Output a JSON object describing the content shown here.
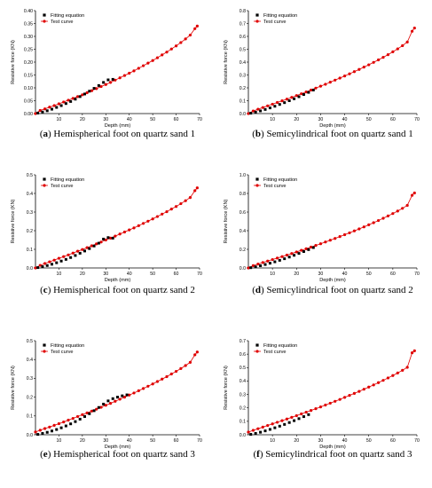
{
  "legend": {
    "fit_label": "Fitting equation",
    "test_label": "Test curve"
  },
  "colors": {
    "fit": "#000000",
    "test": "#e00000"
  },
  "chart_data": [
    {
      "type": "scatter",
      "title": "",
      "caption_prefix": "(",
      "caption_letter": "a",
      "caption_rest": ") Hemispherical foot on quartz sand 1",
      "xlabel": "Depth (mm)",
      "ylabel": "Resistive force (KN)",
      "xlim": [
        0,
        70
      ],
      "ylim": [
        0,
        0.4
      ],
      "xticks": [
        10,
        20,
        30,
        40,
        50,
        60,
        70
      ],
      "yticks": [
        0.0,
        0.05,
        0.1,
        0.15,
        0.2,
        0.25,
        0.3,
        0.35,
        0.4
      ],
      "ytick_labels": [
        "0.00",
        "0.05",
        "0.10",
        "0.15",
        "0.20",
        "0.25",
        "0.30",
        "0.35",
        "0.40"
      ],
      "series": [
        {
          "name": "Fitting equation",
          "x": [
            1,
            3,
            5,
            7,
            9,
            11,
            13,
            15,
            17,
            19,
            21,
            23,
            25,
            27,
            29,
            31,
            33
          ],
          "y": [
            0.002,
            0.006,
            0.011,
            0.017,
            0.024,
            0.031,
            0.039,
            0.047,
            0.056,
            0.066,
            0.076,
            0.087,
            0.098,
            0.109,
            0.121,
            0.131,
            0.133
          ]
        },
        {
          "name": "Test curve",
          "x": [
            0,
            2,
            4,
            6,
            8,
            10,
            12,
            14,
            16,
            18,
            20,
            22,
            24,
            26,
            28,
            30,
            32,
            34,
            36,
            38,
            40,
            42,
            44,
            46,
            48,
            50,
            52,
            54,
            56,
            58,
            60,
            62,
            64,
            66,
            68,
            69
          ],
          "y": [
            0.0,
            0.012,
            0.018,
            0.025,
            0.031,
            0.038,
            0.045,
            0.052,
            0.059,
            0.066,
            0.073,
            0.081,
            0.089,
            0.097,
            0.105,
            0.113,
            0.121,
            0.13,
            0.139,
            0.148,
            0.157,
            0.166,
            0.176,
            0.186,
            0.196,
            0.206,
            0.217,
            0.228,
            0.239,
            0.251,
            0.263,
            0.276,
            0.29,
            0.305,
            0.33,
            0.34
          ]
        }
      ]
    },
    {
      "type": "scatter",
      "title": "",
      "caption_prefix": "(",
      "caption_letter": "b",
      "caption_rest": ") Semicylindrical foot on quartz sand 1",
      "xlabel": "Depth (mm)",
      "ylabel": "Resistive force (KN)",
      "xlim": [
        0,
        70
      ],
      "ylim": [
        0,
        0.8
      ],
      "xticks": [
        10,
        20,
        30,
        40,
        50,
        60,
        70
      ],
      "yticks": [
        0.0,
        0.1,
        0.2,
        0.3,
        0.4,
        0.5,
        0.6,
        0.7,
        0.8
      ],
      "ytick_labels": [
        "0.0",
        "0.1",
        "0.2",
        "0.3",
        "0.4",
        "0.5",
        "0.6",
        "0.7",
        "0.8"
      ],
      "series": [
        {
          "name": "Fitting equation",
          "x": [
            1,
            3,
            5,
            7,
            9,
            11,
            13,
            15,
            17,
            19,
            21,
            23,
            25,
            27
          ],
          "y": [
            0.003,
            0.011,
            0.021,
            0.032,
            0.044,
            0.057,
            0.071,
            0.085,
            0.1,
            0.115,
            0.131,
            0.148,
            0.165,
            0.183
          ]
        },
        {
          "name": "Test curve",
          "x": [
            0,
            2,
            4,
            6,
            8,
            10,
            12,
            14,
            16,
            18,
            20,
            22,
            24,
            26,
            28,
            30,
            32,
            34,
            36,
            38,
            40,
            42,
            44,
            46,
            48,
            50,
            52,
            54,
            56,
            58,
            60,
            62,
            64,
            66,
            68,
            69
          ],
          "y": [
            0.0,
            0.02,
            0.034,
            0.047,
            0.06,
            0.073,
            0.086,
            0.099,
            0.112,
            0.126,
            0.14,
            0.154,
            0.168,
            0.183,
            0.198,
            0.213,
            0.228,
            0.244,
            0.26,
            0.276,
            0.292,
            0.309,
            0.326,
            0.343,
            0.361,
            0.379,
            0.398,
            0.417,
            0.437,
            0.458,
            0.48,
            0.503,
            0.528,
            0.556,
            0.64,
            0.665
          ]
        }
      ]
    },
    {
      "type": "scatter",
      "title": "",
      "caption_prefix": "(",
      "caption_letter": "c",
      "caption_rest": ") Hemispherical foot on quartz sand 2",
      "xlabel": "Depth (mm)",
      "ylabel": "Resistive force (KN)",
      "xlim": [
        0,
        70
      ],
      "ylim": [
        0,
        0.5
      ],
      "xticks": [
        10,
        20,
        30,
        40,
        50,
        60,
        70
      ],
      "yticks": [
        0.0,
        0.1,
        0.2,
        0.3,
        0.4,
        0.5
      ],
      "ytick_labels": [
        "0.0",
        "0.1",
        "0.2",
        "0.3",
        "0.4",
        "0.5"
      ],
      "series": [
        {
          "name": "Fitting equation",
          "x": [
            1,
            3,
            5,
            7,
            9,
            11,
            13,
            15,
            17,
            19,
            21,
            23,
            25,
            27,
            29,
            31,
            33
          ],
          "y": [
            0.002,
            0.007,
            0.013,
            0.02,
            0.028,
            0.037,
            0.046,
            0.056,
            0.067,
            0.079,
            0.091,
            0.104,
            0.118,
            0.133,
            0.155,
            0.163,
            0.16
          ]
        },
        {
          "name": "Test curve",
          "x": [
            0,
            2,
            4,
            6,
            8,
            10,
            12,
            14,
            16,
            18,
            20,
            22,
            24,
            26,
            28,
            30,
            32,
            34,
            36,
            38,
            40,
            42,
            44,
            46,
            48,
            50,
            52,
            54,
            56,
            58,
            60,
            62,
            64,
            66,
            68,
            69
          ],
          "y": [
            0.0,
            0.014,
            0.024,
            0.033,
            0.042,
            0.052,
            0.061,
            0.07,
            0.08,
            0.09,
            0.099,
            0.109,
            0.119,
            0.129,
            0.139,
            0.15,
            0.16,
            0.171,
            0.182,
            0.193,
            0.204,
            0.215,
            0.227,
            0.239,
            0.251,
            0.263,
            0.276,
            0.289,
            0.302,
            0.316,
            0.33,
            0.345,
            0.361,
            0.378,
            0.415,
            0.43
          ]
        }
      ]
    },
    {
      "type": "scatter",
      "title": "",
      "caption_prefix": "(",
      "caption_letter": "d",
      "caption_rest": ") Semicylindrical foot on quartz sand 2",
      "xlabel": "Depth (mm)",
      "ylabel": "Resistive force (KN)",
      "xlim": [
        0,
        70
      ],
      "ylim": [
        0,
        1.0
      ],
      "xticks": [
        10,
        20,
        30,
        40,
        50,
        60,
        70
      ],
      "yticks": [
        0.0,
        0.2,
        0.4,
        0.6,
        0.8,
        1.0
      ],
      "ytick_labels": [
        "0.0",
        "0.2",
        "0.4",
        "0.6",
        "0.8",
        "1.0"
      ],
      "series": [
        {
          "name": "Fitting equation",
          "x": [
            1,
            3,
            5,
            7,
            9,
            11,
            13,
            15,
            17,
            19,
            21,
            23,
            25,
            27
          ],
          "y": [
            0.003,
            0.012,
            0.024,
            0.037,
            0.051,
            0.066,
            0.082,
            0.099,
            0.117,
            0.136,
            0.156,
            0.176,
            0.197,
            0.219
          ]
        },
        {
          "name": "Test curve",
          "x": [
            0,
            2,
            4,
            6,
            8,
            10,
            12,
            14,
            16,
            18,
            20,
            22,
            24,
            26,
            28,
            30,
            32,
            34,
            36,
            38,
            40,
            42,
            44,
            46,
            48,
            50,
            52,
            54,
            56,
            58,
            60,
            62,
            64,
            66,
            68,
            69
          ],
          "y": [
            0.0,
            0.025,
            0.042,
            0.058,
            0.074,
            0.09,
            0.106,
            0.122,
            0.138,
            0.155,
            0.172,
            0.189,
            0.206,
            0.224,
            0.242,
            0.26,
            0.279,
            0.298,
            0.317,
            0.337,
            0.357,
            0.377,
            0.398,
            0.419,
            0.441,
            0.463,
            0.486,
            0.509,
            0.533,
            0.558,
            0.584,
            0.611,
            0.64,
            0.672,
            0.78,
            0.805
          ]
        }
      ]
    },
    {
      "type": "scatter",
      "title": "",
      "caption_prefix": "(",
      "caption_letter": "e",
      "caption_rest": ") Hemispherical foot on quartz sand 3",
      "xlabel": "Depth (mm)",
      "ylabel": "Resistive force (KN)",
      "xlim": [
        0,
        70
      ],
      "ylim": [
        0,
        0.5
      ],
      "xticks": [
        10,
        20,
        30,
        40,
        50,
        60,
        70
      ],
      "yticks": [
        0.0,
        0.1,
        0.2,
        0.3,
        0.4,
        0.5
      ],
      "ytick_labels": [
        "0.0",
        "0.1",
        "0.2",
        "0.3",
        "0.4",
        "0.5"
      ],
      "series": [
        {
          "name": "Fitting equation",
          "x": [
            1,
            3,
            5,
            7,
            9,
            11,
            13,
            15,
            17,
            19,
            21,
            23,
            25,
            27,
            29,
            31,
            33,
            35,
            37,
            39
          ],
          "y": [
            0.002,
            0.007,
            0.013,
            0.02,
            0.028,
            0.037,
            0.047,
            0.058,
            0.07,
            0.083,
            0.097,
            0.112,
            0.128,
            0.145,
            0.163,
            0.18,
            0.192,
            0.2,
            0.207,
            0.212
          ]
        },
        {
          "name": "Test curve",
          "x": [
            0,
            2,
            4,
            6,
            8,
            10,
            12,
            14,
            16,
            18,
            20,
            22,
            24,
            26,
            28,
            30,
            32,
            34,
            36,
            38,
            40,
            42,
            44,
            46,
            48,
            50,
            52,
            54,
            56,
            58,
            60,
            62,
            64,
            66,
            68,
            69
          ],
          "y": [
            0.015,
            0.024,
            0.033,
            0.041,
            0.05,
            0.059,
            0.068,
            0.078,
            0.087,
            0.097,
            0.107,
            0.116,
            0.126,
            0.136,
            0.146,
            0.157,
            0.167,
            0.178,
            0.189,
            0.2,
            0.211,
            0.222,
            0.234,
            0.246,
            0.258,
            0.27,
            0.283,
            0.296,
            0.309,
            0.323,
            0.337,
            0.352,
            0.368,
            0.385,
            0.425,
            0.44
          ]
        }
      ]
    },
    {
      "type": "scatter",
      "title": "",
      "caption_prefix": "(",
      "caption_letter": "f",
      "caption_rest": ") Semicylindrical foot on quartz sand 3",
      "xlabel": "Depth (mm)",
      "ylabel": "Resistive force (KN)",
      "xlim": [
        0,
        70
      ],
      "ylim": [
        0,
        0.7
      ],
      "xticks": [
        10,
        20,
        30,
        40,
        50,
        60,
        70
      ],
      "yticks": [
        0.0,
        0.1,
        0.2,
        0.3,
        0.4,
        0.5,
        0.6,
        0.7
      ],
      "ytick_labels": [
        "0.0",
        "0.1",
        "0.2",
        "0.3",
        "0.4",
        "0.5",
        "0.6",
        "0.7"
      ],
      "series": [
        {
          "name": "Fitting equation",
          "x": [
            1,
            3,
            5,
            7,
            9,
            11,
            13,
            15,
            17,
            19,
            21,
            23,
            25
          ],
          "y": [
            0.003,
            0.01,
            0.019,
            0.029,
            0.04,
            0.052,
            0.064,
            0.077,
            0.091,
            0.105,
            0.12,
            0.135,
            0.15
          ]
        },
        {
          "name": "Test curve",
          "x": [
            0,
            2,
            4,
            6,
            8,
            10,
            12,
            14,
            16,
            18,
            20,
            22,
            24,
            26,
            28,
            30,
            32,
            34,
            36,
            38,
            40,
            42,
            44,
            46,
            48,
            50,
            52,
            54,
            56,
            58,
            60,
            62,
            64,
            66,
            68,
            69
          ],
          "y": [
            0.02,
            0.033,
            0.045,
            0.057,
            0.069,
            0.081,
            0.093,
            0.105,
            0.117,
            0.13,
            0.142,
            0.155,
            0.168,
            0.181,
            0.194,
            0.207,
            0.221,
            0.235,
            0.249,
            0.263,
            0.278,
            0.293,
            0.308,
            0.323,
            0.339,
            0.355,
            0.371,
            0.388,
            0.405,
            0.423,
            0.441,
            0.46,
            0.48,
            0.502,
            0.61,
            0.625
          ]
        }
      ]
    }
  ]
}
